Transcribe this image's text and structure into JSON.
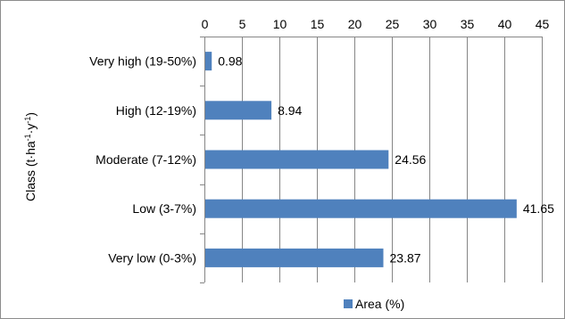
{
  "chart_data": {
    "type": "bar",
    "orientation": "horizontal",
    "categories": [
      "Very high (19-50%)",
      "High (12-19%)",
      "Moderate (7-12%)",
      "Low (3-7%)",
      "Very low (0-3%)"
    ],
    "series": [
      {
        "name": "Area (%)",
        "values": [
          0.98,
          8.94,
          24.56,
          41.65,
          23.87
        ],
        "color": "#4f81bd"
      }
    ],
    "data_labels": [
      "0.98",
      "8.94",
      "24.56",
      "41.65",
      "23.87"
    ],
    "ylabel_main": "Class (t·ha",
    "ylabel_sup1": "-1",
    "ylabel_mid": "·y",
    "ylabel_sup2": "-1",
    "ylabel_end": ")",
    "xlim": [
      0,
      45
    ],
    "xticks": [
      "0",
      "5",
      "10",
      "15",
      "20",
      "25",
      "30",
      "35",
      "40",
      "45"
    ],
    "x_axis_position": "top",
    "grid": true,
    "legend_position": "bottom"
  }
}
